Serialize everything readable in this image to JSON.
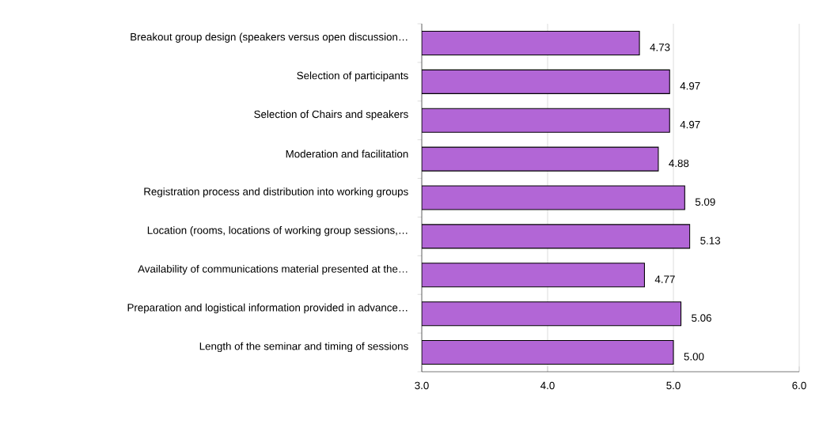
{
  "chart_data": {
    "type": "bar",
    "orientation": "horizontal",
    "categories": [
      "Breakout group design (speakers versus open discussion…",
      "Selection of participants",
      "Selection of Chairs and speakers",
      "Moderation and facilitation",
      "Registration process and distribution into working groups",
      "Location (rooms, locations of working group sessions,…",
      "Availability of communications material presented at the…",
      "Preparation and logistical information provided in advance…",
      "Length of the seminar and timing of sessions"
    ],
    "values": [
      4.73,
      4.97,
      4.97,
      4.88,
      5.09,
      5.13,
      4.77,
      5.06,
      5.0
    ],
    "value_labels": [
      "4.73",
      "4.97",
      "4.97",
      "4.88",
      "5.09",
      "5.13",
      "4.77",
      "5.06",
      "5.00"
    ],
    "color": "#b266d6",
    "xlim": [
      3,
      6
    ],
    "xticks": [
      {
        "value": 3,
        "label": "3.0"
      },
      {
        "value": 4,
        "label": "4.0"
      },
      {
        "value": 5,
        "label": "5.0"
      },
      {
        "value": 6,
        "label": "6.0"
      }
    ],
    "grid": "x"
  }
}
